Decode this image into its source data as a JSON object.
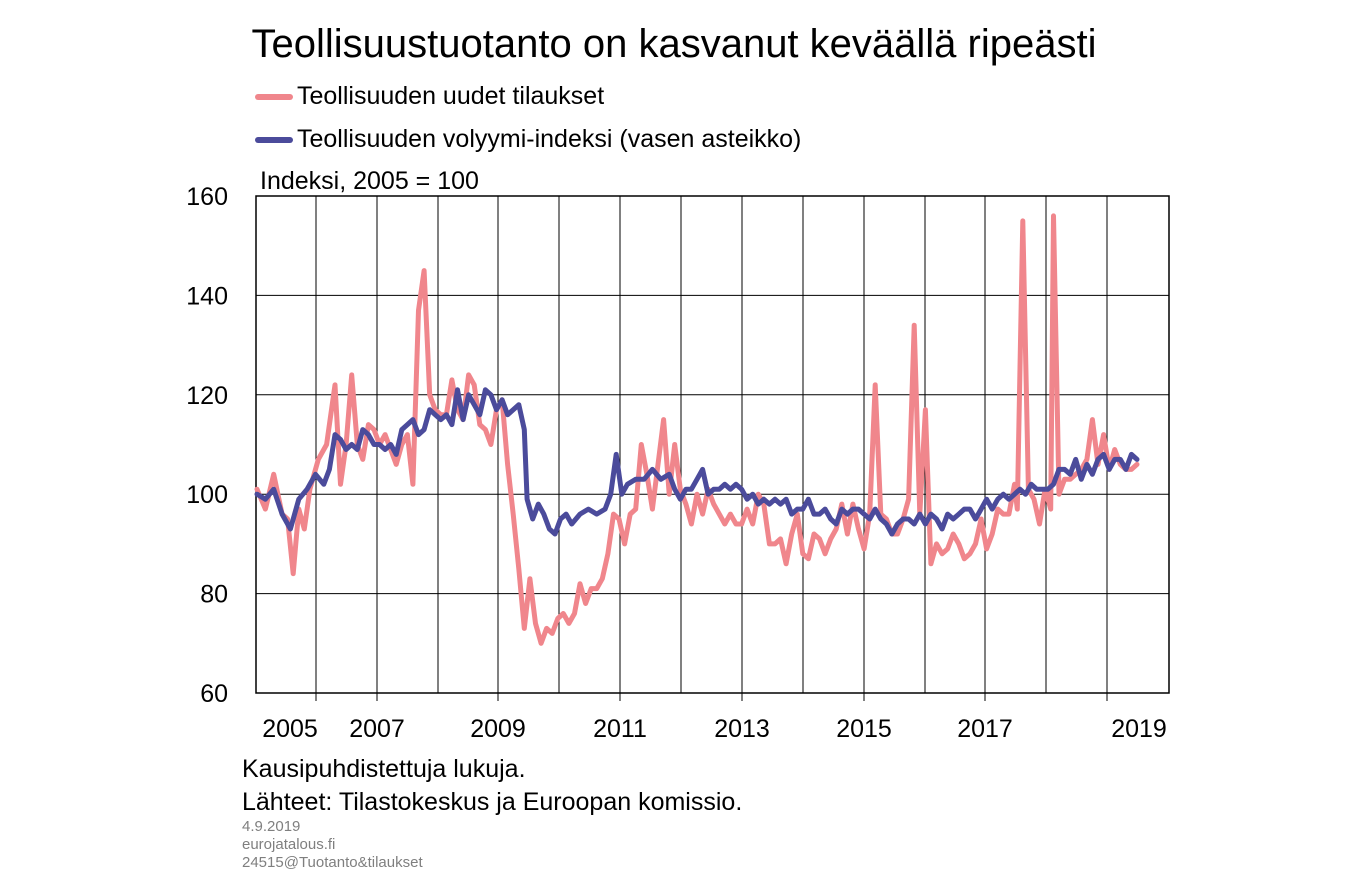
{
  "title": "Teollisuustuotanto on kasvanut keväällä ripeästi",
  "unit_label": "Indeksi, 2005 = 100",
  "notes": [
    "Kausipuhdistettuja lukuja.",
    "Lähteet: Tilastokeskus ja Euroopan komissio."
  ],
  "footer": [
    "4.9.2019",
    "eurojatalous.fi",
    "24515@Tuotanto&tilaukset"
  ],
  "colors": {
    "orders": "#f0868c",
    "volume": "#4b4b9b",
    "grid": "#000000"
  },
  "chart_data": {
    "type": "line",
    "title": "Teollisuustuotanto on kasvanut keväällä ripeästi",
    "ylabel": "Indeksi, 2005 = 100",
    "xlabel": "",
    "ylim": [
      60,
      160
    ],
    "yticks": [
      60,
      80,
      100,
      120,
      140,
      160
    ],
    "xlim": [
      2004.5,
      2019.5
    ],
    "xticks": [
      2005,
      2007,
      2009,
      2011,
      2013,
      2015,
      2017,
      2019
    ],
    "xtick_labels": [
      "2005",
      "2007",
      "2009",
      "2011",
      "2013",
      "2015",
      "2017",
      "2019"
    ],
    "grid": true,
    "legend_position": "top-left",
    "series": [
      {
        "name": "Teollisuuden uudet tilaukset",
        "color": "#f0868c",
        "points": [
          [
            2004.5,
            101
          ],
          [
            2004.65,
            97
          ],
          [
            2004.8,
            104
          ],
          [
            2004.95,
            96
          ],
          [
            2005.05,
            95
          ],
          [
            2005.15,
            84
          ],
          [
            2005.25,
            97
          ],
          [
            2005.35,
            93
          ],
          [
            2005.45,
            101
          ],
          [
            2005.6,
            107
          ],
          [
            2005.75,
            110
          ],
          [
            2005.9,
            122
          ],
          [
            2006.0,
            102
          ],
          [
            2006.1,
            110
          ],
          [
            2006.2,
            124
          ],
          [
            2006.3,
            110
          ],
          [
            2006.4,
            107
          ],
          [
            2006.5,
            114
          ],
          [
            2006.6,
            113
          ],
          [
            2006.7,
            110
          ],
          [
            2006.8,
            112
          ],
          [
            2006.9,
            109
          ],
          [
            2007.0,
            106
          ],
          [
            2007.1,
            110
          ],
          [
            2007.2,
            112
          ],
          [
            2007.3,
            102
          ],
          [
            2007.4,
            137
          ],
          [
            2007.5,
            145
          ],
          [
            2007.6,
            120
          ],
          [
            2007.7,
            117
          ],
          [
            2007.8,
            116
          ],
          [
            2007.9,
            116
          ],
          [
            2008.0,
            123
          ],
          [
            2008.1,
            117
          ],
          [
            2008.2,
            115
          ],
          [
            2008.3,
            124
          ],
          [
            2008.4,
            122
          ],
          [
            2008.5,
            114
          ],
          [
            2008.6,
            113
          ],
          [
            2008.7,
            110
          ],
          [
            2008.8,
            117
          ],
          [
            2008.9,
            119
          ],
          [
            2009.0,
            106
          ],
          [
            2009.1,
            96
          ],
          [
            2009.2,
            85
          ],
          [
            2009.3,
            73
          ],
          [
            2009.4,
            83
          ],
          [
            2009.5,
            74
          ],
          [
            2009.6,
            70
          ],
          [
            2009.7,
            73
          ],
          [
            2009.8,
            72
          ],
          [
            2009.9,
            75
          ],
          [
            2010.0,
            76
          ],
          [
            2010.1,
            74
          ],
          [
            2010.2,
            76
          ],
          [
            2010.3,
            82
          ],
          [
            2010.4,
            78
          ],
          [
            2010.5,
            81
          ],
          [
            2010.6,
            81
          ],
          [
            2010.7,
            83
          ],
          [
            2010.8,
            88
          ],
          [
            2010.9,
            96
          ],
          [
            2011.0,
            95
          ],
          [
            2011.1,
            90
          ],
          [
            2011.2,
            96
          ],
          [
            2011.3,
            97
          ],
          [
            2011.4,
            110
          ],
          [
            2011.5,
            104
          ],
          [
            2011.6,
            97
          ],
          [
            2011.7,
            106
          ],
          [
            2011.8,
            115
          ],
          [
            2011.9,
            100
          ],
          [
            2012.0,
            110
          ],
          [
            2012.1,
            101
          ],
          [
            2012.2,
            98
          ],
          [
            2012.3,
            94
          ],
          [
            2012.4,
            100
          ],
          [
            2012.5,
            96
          ],
          [
            2012.6,
            101
          ],
          [
            2012.7,
            98
          ],
          [
            2012.8,
            96
          ],
          [
            2012.9,
            94
          ],
          [
            2013.0,
            96
          ],
          [
            2013.1,
            94
          ],
          [
            2013.2,
            94
          ],
          [
            2013.3,
            97
          ],
          [
            2013.4,
            94
          ],
          [
            2013.5,
            100
          ],
          [
            2013.6,
            98
          ],
          [
            2013.7,
            90
          ],
          [
            2013.8,
            90
          ],
          [
            2013.9,
            91
          ],
          [
            2014.0,
            86
          ],
          [
            2014.1,
            92
          ],
          [
            2014.2,
            96
          ],
          [
            2014.3,
            88
          ],
          [
            2014.4,
            87
          ],
          [
            2014.5,
            92
          ],
          [
            2014.6,
            91
          ],
          [
            2014.7,
            88
          ],
          [
            2014.8,
            91
          ],
          [
            2014.9,
            93
          ],
          [
            2015.0,
            98
          ],
          [
            2015.1,
            92
          ],
          [
            2015.2,
            98
          ],
          [
            2015.3,
            93
          ],
          [
            2015.4,
            89
          ],
          [
            2015.5,
            96
          ],
          [
            2015.6,
            122
          ],
          [
            2015.7,
            96
          ],
          [
            2015.8,
            95
          ],
          [
            2015.9,
            92
          ],
          [
            2016.0,
            92
          ],
          [
            2016.1,
            95
          ],
          [
            2016.2,
            99
          ],
          [
            2016.3,
            134
          ],
          [
            2016.4,
            96
          ],
          [
            2016.5,
            117
          ],
          [
            2016.6,
            86
          ],
          [
            2016.7,
            90
          ],
          [
            2016.8,
            88
          ],
          [
            2016.9,
            89
          ],
          [
            2017.0,
            92
          ],
          [
            2017.1,
            90
          ],
          [
            2017.2,
            87
          ],
          [
            2017.3,
            88
          ],
          [
            2017.4,
            90
          ],
          [
            2017.5,
            95
          ],
          [
            2017.6,
            89
          ],
          [
            2017.7,
            92
          ],
          [
            2017.8,
            97
          ],
          [
            2017.9,
            96
          ],
          [
            2018.0,
            96
          ],
          [
            2018.1,
            102
          ],
          [
            2018.15,
            97
          ],
          [
            2018.25,
            155
          ],
          [
            2018.35,
            101
          ],
          [
            2018.45,
            99
          ],
          [
            2018.55,
            94
          ],
          [
            2018.65,
            101
          ],
          [
            2018.75,
            97
          ],
          [
            2018.8,
            156
          ],
          [
            2018.9,
            100
          ],
          [
            2019.0,
            103
          ],
          [
            2019.1,
            103
          ],
          [
            2019.2,
            104
          ],
          [
            2019.3,
            105
          ],
          [
            2019.4,
            107
          ],
          [
            2019.5,
            115
          ],
          [
            2019.6,
            106
          ],
          [
            2019.7,
            112
          ],
          [
            2019.8,
            105
          ],
          [
            2019.9,
            109
          ],
          [
            2020.0,
            106
          ],
          [
            2020.1,
            105
          ],
          [
            2020.2,
            105
          ],
          [
            2020.3,
            106
          ]
        ]
      },
      {
        "name": "Teollisuuden volyymi-indeksi (vasen asteikko)",
        "color": "#4b4b9b",
        "points": [
          [
            2004.5,
            100
          ],
          [
            2004.65,
            99
          ],
          [
            2004.8,
            101
          ],
          [
            2004.95,
            96
          ],
          [
            2005.1,
            93
          ],
          [
            2005.25,
            99
          ],
          [
            2005.4,
            101
          ],
          [
            2005.55,
            104
          ],
          [
            2005.7,
            102
          ],
          [
            2005.8,
            105
          ],
          [
            2005.9,
            112
          ],
          [
            2006.0,
            111
          ],
          [
            2006.1,
            109
          ],
          [
            2006.2,
            110
          ],
          [
            2006.3,
            109
          ],
          [
            2006.4,
            113
          ],
          [
            2006.5,
            112
          ],
          [
            2006.6,
            110
          ],
          [
            2006.7,
            110
          ],
          [
            2006.8,
            109
          ],
          [
            2006.9,
            110
          ],
          [
            2007.0,
            108
          ],
          [
            2007.1,
            113
          ],
          [
            2007.2,
            114
          ],
          [
            2007.3,
            115
          ],
          [
            2007.4,
            112
          ],
          [
            2007.5,
            113
          ],
          [
            2007.6,
            117
          ],
          [
            2007.7,
            116
          ],
          [
            2007.8,
            115
          ],
          [
            2007.9,
            116
          ],
          [
            2008.0,
            114
          ],
          [
            2008.1,
            121
          ],
          [
            2008.2,
            115
          ],
          [
            2008.3,
            120
          ],
          [
            2008.4,
            118
          ],
          [
            2008.5,
            116
          ],
          [
            2008.6,
            121
          ],
          [
            2008.7,
            120
          ],
          [
            2008.8,
            117
          ],
          [
            2008.9,
            119
          ],
          [
            2009.0,
            116
          ],
          [
            2009.1,
            117
          ],
          [
            2009.2,
            118
          ],
          [
            2009.3,
            113
          ],
          [
            2009.35,
            99
          ],
          [
            2009.45,
            95
          ],
          [
            2009.55,
            98
          ],
          [
            2009.65,
            96
          ],
          [
            2009.75,
            93
          ],
          [
            2009.85,
            92
          ],
          [
            2009.95,
            95
          ],
          [
            2010.05,
            96
          ],
          [
            2010.15,
            94
          ],
          [
            2010.3,
            96
          ],
          [
            2010.45,
            97
          ],
          [
            2010.6,
            96
          ],
          [
            2010.75,
            97
          ],
          [
            2010.85,
            100
          ],
          [
            2010.95,
            108
          ],
          [
            2011.05,
            100
          ],
          [
            2011.15,
            102
          ],
          [
            2011.3,
            103
          ],
          [
            2011.45,
            103
          ],
          [
            2011.6,
            105
          ],
          [
            2011.75,
            103
          ],
          [
            2011.9,
            104
          ],
          [
            2012.0,
            101
          ],
          [
            2012.1,
            99
          ],
          [
            2012.2,
            101
          ],
          [
            2012.3,
            101
          ],
          [
            2012.4,
            103
          ],
          [
            2012.5,
            105
          ],
          [
            2012.6,
            100
          ],
          [
            2012.7,
            101
          ],
          [
            2012.8,
            101
          ],
          [
            2012.9,
            102
          ],
          [
            2013.0,
            101
          ],
          [
            2013.1,
            102
          ],
          [
            2013.2,
            101
          ],
          [
            2013.3,
            99
          ],
          [
            2013.4,
            100
          ],
          [
            2013.5,
            98
          ],
          [
            2013.6,
            99
          ],
          [
            2013.7,
            98
          ],
          [
            2013.8,
            99
          ],
          [
            2013.9,
            98
          ],
          [
            2014.0,
            99
          ],
          [
            2014.1,
            96
          ],
          [
            2014.2,
            97
          ],
          [
            2014.3,
            97
          ],
          [
            2014.4,
            99
          ],
          [
            2014.5,
            96
          ],
          [
            2014.6,
            96
          ],
          [
            2014.7,
            97
          ],
          [
            2014.8,
            95
          ],
          [
            2014.9,
            94
          ],
          [
            2015.0,
            97
          ],
          [
            2015.1,
            96
          ],
          [
            2015.2,
            97
          ],
          [
            2015.3,
            97
          ],
          [
            2015.4,
            96
          ],
          [
            2015.5,
            95
          ],
          [
            2015.6,
            97
          ],
          [
            2015.7,
            95
          ],
          [
            2015.8,
            94
          ],
          [
            2015.9,
            92
          ],
          [
            2016.0,
            94
          ],
          [
            2016.1,
            95
          ],
          [
            2016.2,
            95
          ],
          [
            2016.3,
            94
          ],
          [
            2016.4,
            96
          ],
          [
            2016.5,
            94
          ],
          [
            2016.6,
            96
          ],
          [
            2016.7,
            95
          ],
          [
            2016.8,
            93
          ],
          [
            2016.9,
            96
          ],
          [
            2017.0,
            95
          ],
          [
            2017.1,
            96
          ],
          [
            2017.2,
            97
          ],
          [
            2017.3,
            97
          ],
          [
            2017.4,
            95
          ],
          [
            2017.5,
            97
          ],
          [
            2017.6,
            99
          ],
          [
            2017.7,
            97
          ],
          [
            2017.8,
            99
          ],
          [
            2017.9,
            100
          ],
          [
            2018.0,
            99
          ],
          [
            2018.1,
            100
          ],
          [
            2018.2,
            101
          ],
          [
            2018.3,
            100
          ],
          [
            2018.4,
            102
          ],
          [
            2018.5,
            101
          ],
          [
            2018.6,
            101
          ],
          [
            2018.7,
            101
          ],
          [
            2018.8,
            102
          ],
          [
            2018.9,
            105
          ],
          [
            2019.0,
            105
          ],
          [
            2019.1,
            104
          ],
          [
            2019.2,
            107
          ],
          [
            2019.3,
            103
          ],
          [
            2019.4,
            106
          ],
          [
            2019.5,
            104
          ],
          [
            2019.6,
            107
          ],
          [
            2019.7,
            108
          ],
          [
            2019.8,
            105
          ],
          [
            2019.9,
            107
          ],
          [
            2020.0,
            107
          ],
          [
            2020.1,
            105
          ],
          [
            2020.2,
            108
          ],
          [
            2020.3,
            107
          ]
        ]
      }
    ]
  }
}
